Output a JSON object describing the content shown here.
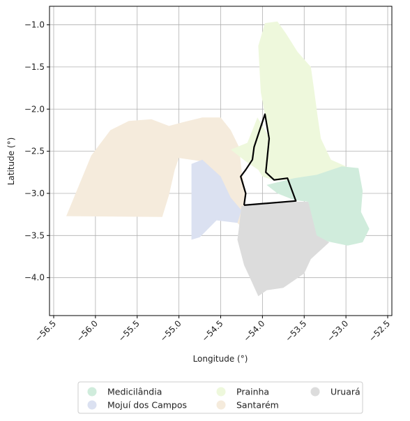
{
  "map": {
    "xlabel": "Longitude (°)",
    "ylabel": "Latitude (°)",
    "xlim": [
      -56.55,
      -52.45
    ],
    "ylim": [
      -4.45,
      -0.78
    ],
    "x_ticks": [
      {
        "value": -56.5,
        "label": "−56.5"
      },
      {
        "value": -56.0,
        "label": "−56.0"
      },
      {
        "value": -55.5,
        "label": "−55.5"
      },
      {
        "value": -55.0,
        "label": "−55.0"
      },
      {
        "value": -54.5,
        "label": "−54.5"
      },
      {
        "value": -54.0,
        "label": "−54.0"
      },
      {
        "value": -53.5,
        "label": "−53.5"
      },
      {
        "value": -53.0,
        "label": "−53.0"
      },
      {
        "value": -52.5,
        "label": "−52.5"
      }
    ],
    "y_ticks": [
      {
        "value": -1.0,
        "label": "−1.0"
      },
      {
        "value": -1.5,
        "label": "−1.5"
      },
      {
        "value": -2.0,
        "label": "−2.0"
      },
      {
        "value": -2.5,
        "label": "−2.5"
      },
      {
        "value": -3.0,
        "label": "−3.0"
      },
      {
        "value": -3.5,
        "label": "−3.5"
      },
      {
        "value": -4.0,
        "label": "−4.0"
      }
    ],
    "grid": true,
    "legend_position": "bottom-center, below plot",
    "regions": [
      {
        "name": "Santarém",
        "color": "#f5ebdc",
        "polygon": [
          [
            -56.35,
            -3.27
          ],
          [
            -56.05,
            -2.55
          ],
          [
            -55.82,
            -2.25
          ],
          [
            -55.6,
            -2.14
          ],
          [
            -55.33,
            -2.12
          ],
          [
            -55.12,
            -2.2
          ],
          [
            -54.93,
            -2.15
          ],
          [
            -54.72,
            -2.1
          ],
          [
            -54.5,
            -2.1
          ],
          [
            -54.38,
            -2.25
          ],
          [
            -54.28,
            -2.45
          ],
          [
            -54.25,
            -2.72
          ],
          [
            -54.2,
            -3.0
          ],
          [
            -54.25,
            -3.4
          ],
          [
            -54.4,
            -3.25
          ],
          [
            -54.5,
            -2.85
          ],
          [
            -54.72,
            -2.62
          ],
          [
            -55.0,
            -2.58
          ],
          [
            -55.05,
            -2.72
          ],
          [
            -55.12,
            -3.02
          ],
          [
            -55.2,
            -3.28
          ]
        ]
      },
      {
        "name": "Prainha",
        "color": "#eef8dc",
        "polygon": [
          [
            -54.38,
            -2.48
          ],
          [
            -54.18,
            -2.4
          ],
          [
            -54.06,
            -2.1
          ],
          [
            -53.92,
            -2.33
          ],
          [
            -54.02,
            -1.8
          ],
          [
            -54.05,
            -1.25
          ],
          [
            -53.97,
            -0.98
          ],
          [
            -53.82,
            -0.96
          ],
          [
            -53.72,
            -1.1
          ],
          [
            -53.58,
            -1.32
          ],
          [
            -53.42,
            -1.5
          ],
          [
            -53.38,
            -1.78
          ],
          [
            -53.34,
            -2.08
          ],
          [
            -53.3,
            -2.35
          ],
          [
            -53.18,
            -2.6
          ],
          [
            -53.0,
            -2.68
          ],
          [
            -53.0,
            -2.72
          ],
          [
            -53.3,
            -2.78
          ],
          [
            -53.62,
            -2.83
          ],
          [
            -53.85,
            -2.85
          ],
          [
            -54.0,
            -2.8
          ],
          [
            -54.05,
            -2.72
          ],
          [
            -54.2,
            -2.62
          ]
        ]
      },
      {
        "name": "Medicilândia",
        "color": "#d0ecdc",
        "polygon": [
          [
            -53.95,
            -2.9
          ],
          [
            -53.62,
            -2.82
          ],
          [
            -53.35,
            -2.78
          ],
          [
            -53.05,
            -2.68
          ],
          [
            -52.85,
            -2.7
          ],
          [
            -52.8,
            -2.97
          ],
          [
            -52.82,
            -3.22
          ],
          [
            -52.72,
            -3.42
          ],
          [
            -52.8,
            -3.58
          ],
          [
            -52.98,
            -3.62
          ],
          [
            -53.22,
            -3.57
          ],
          [
            -53.38,
            -3.5
          ],
          [
            -53.45,
            -3.1
          ],
          [
            -53.62,
            -3.08
          ],
          [
            -53.82,
            -3.0
          ]
        ]
      },
      {
        "name": "Mojuí dos Campos",
        "color": "#dbe1f1",
        "polygon": [
          [
            -54.85,
            -2.65
          ],
          [
            -54.72,
            -2.6
          ],
          [
            -54.5,
            -2.8
          ],
          [
            -54.38,
            -3.05
          ],
          [
            -54.25,
            -3.2
          ],
          [
            -54.3,
            -3.35
          ],
          [
            -54.55,
            -3.32
          ],
          [
            -54.75,
            -3.52
          ],
          [
            -54.85,
            -3.55
          ]
        ]
      },
      {
        "name": "Uruará",
        "color": "#dcdcdc",
        "polygon": [
          [
            -54.25,
            -3.15
          ],
          [
            -53.6,
            -3.1
          ],
          [
            -53.45,
            -3.1
          ],
          [
            -53.35,
            -3.5
          ],
          [
            -53.2,
            -3.58
          ],
          [
            -53.42,
            -3.78
          ],
          [
            -53.5,
            -3.95
          ],
          [
            -53.75,
            -4.12
          ],
          [
            -53.95,
            -4.15
          ],
          [
            -54.05,
            -4.22
          ],
          [
            -54.15,
            -4.0
          ],
          [
            -54.22,
            -3.85
          ],
          [
            -54.3,
            -3.55
          ],
          [
            -54.28,
            -3.4
          ]
        ]
      }
    ],
    "outline": {
      "color": "#000000",
      "points": [
        [
          -54.22,
          -3.14
        ],
        [
          -54.2,
          -3.0
        ],
        [
          -54.26,
          -2.8
        ],
        [
          -54.2,
          -2.72
        ],
        [
          -54.12,
          -2.6
        ],
        [
          -54.1,
          -2.45
        ],
        [
          -54.05,
          -2.3
        ],
        [
          -53.97,
          -2.06
        ],
        [
          -53.92,
          -2.35
        ],
        [
          -53.96,
          -2.75
        ],
        [
          -53.86,
          -2.84
        ],
        [
          -53.7,
          -2.82
        ],
        [
          -53.6,
          -3.09
        ],
        [
          -54.22,
          -3.14
        ]
      ]
    },
    "legend": [
      {
        "label": "Medicilândia",
        "color": "#d0ecdc"
      },
      {
        "label": "Mojuí dos Campos",
        "color": "#dbe1f1"
      },
      {
        "label": "Prainha",
        "color": "#eef8dc"
      },
      {
        "label": "Santarém",
        "color": "#f5ebdc"
      },
      {
        "label": "Uruará",
        "color": "#dcdcdc"
      }
    ]
  }
}
